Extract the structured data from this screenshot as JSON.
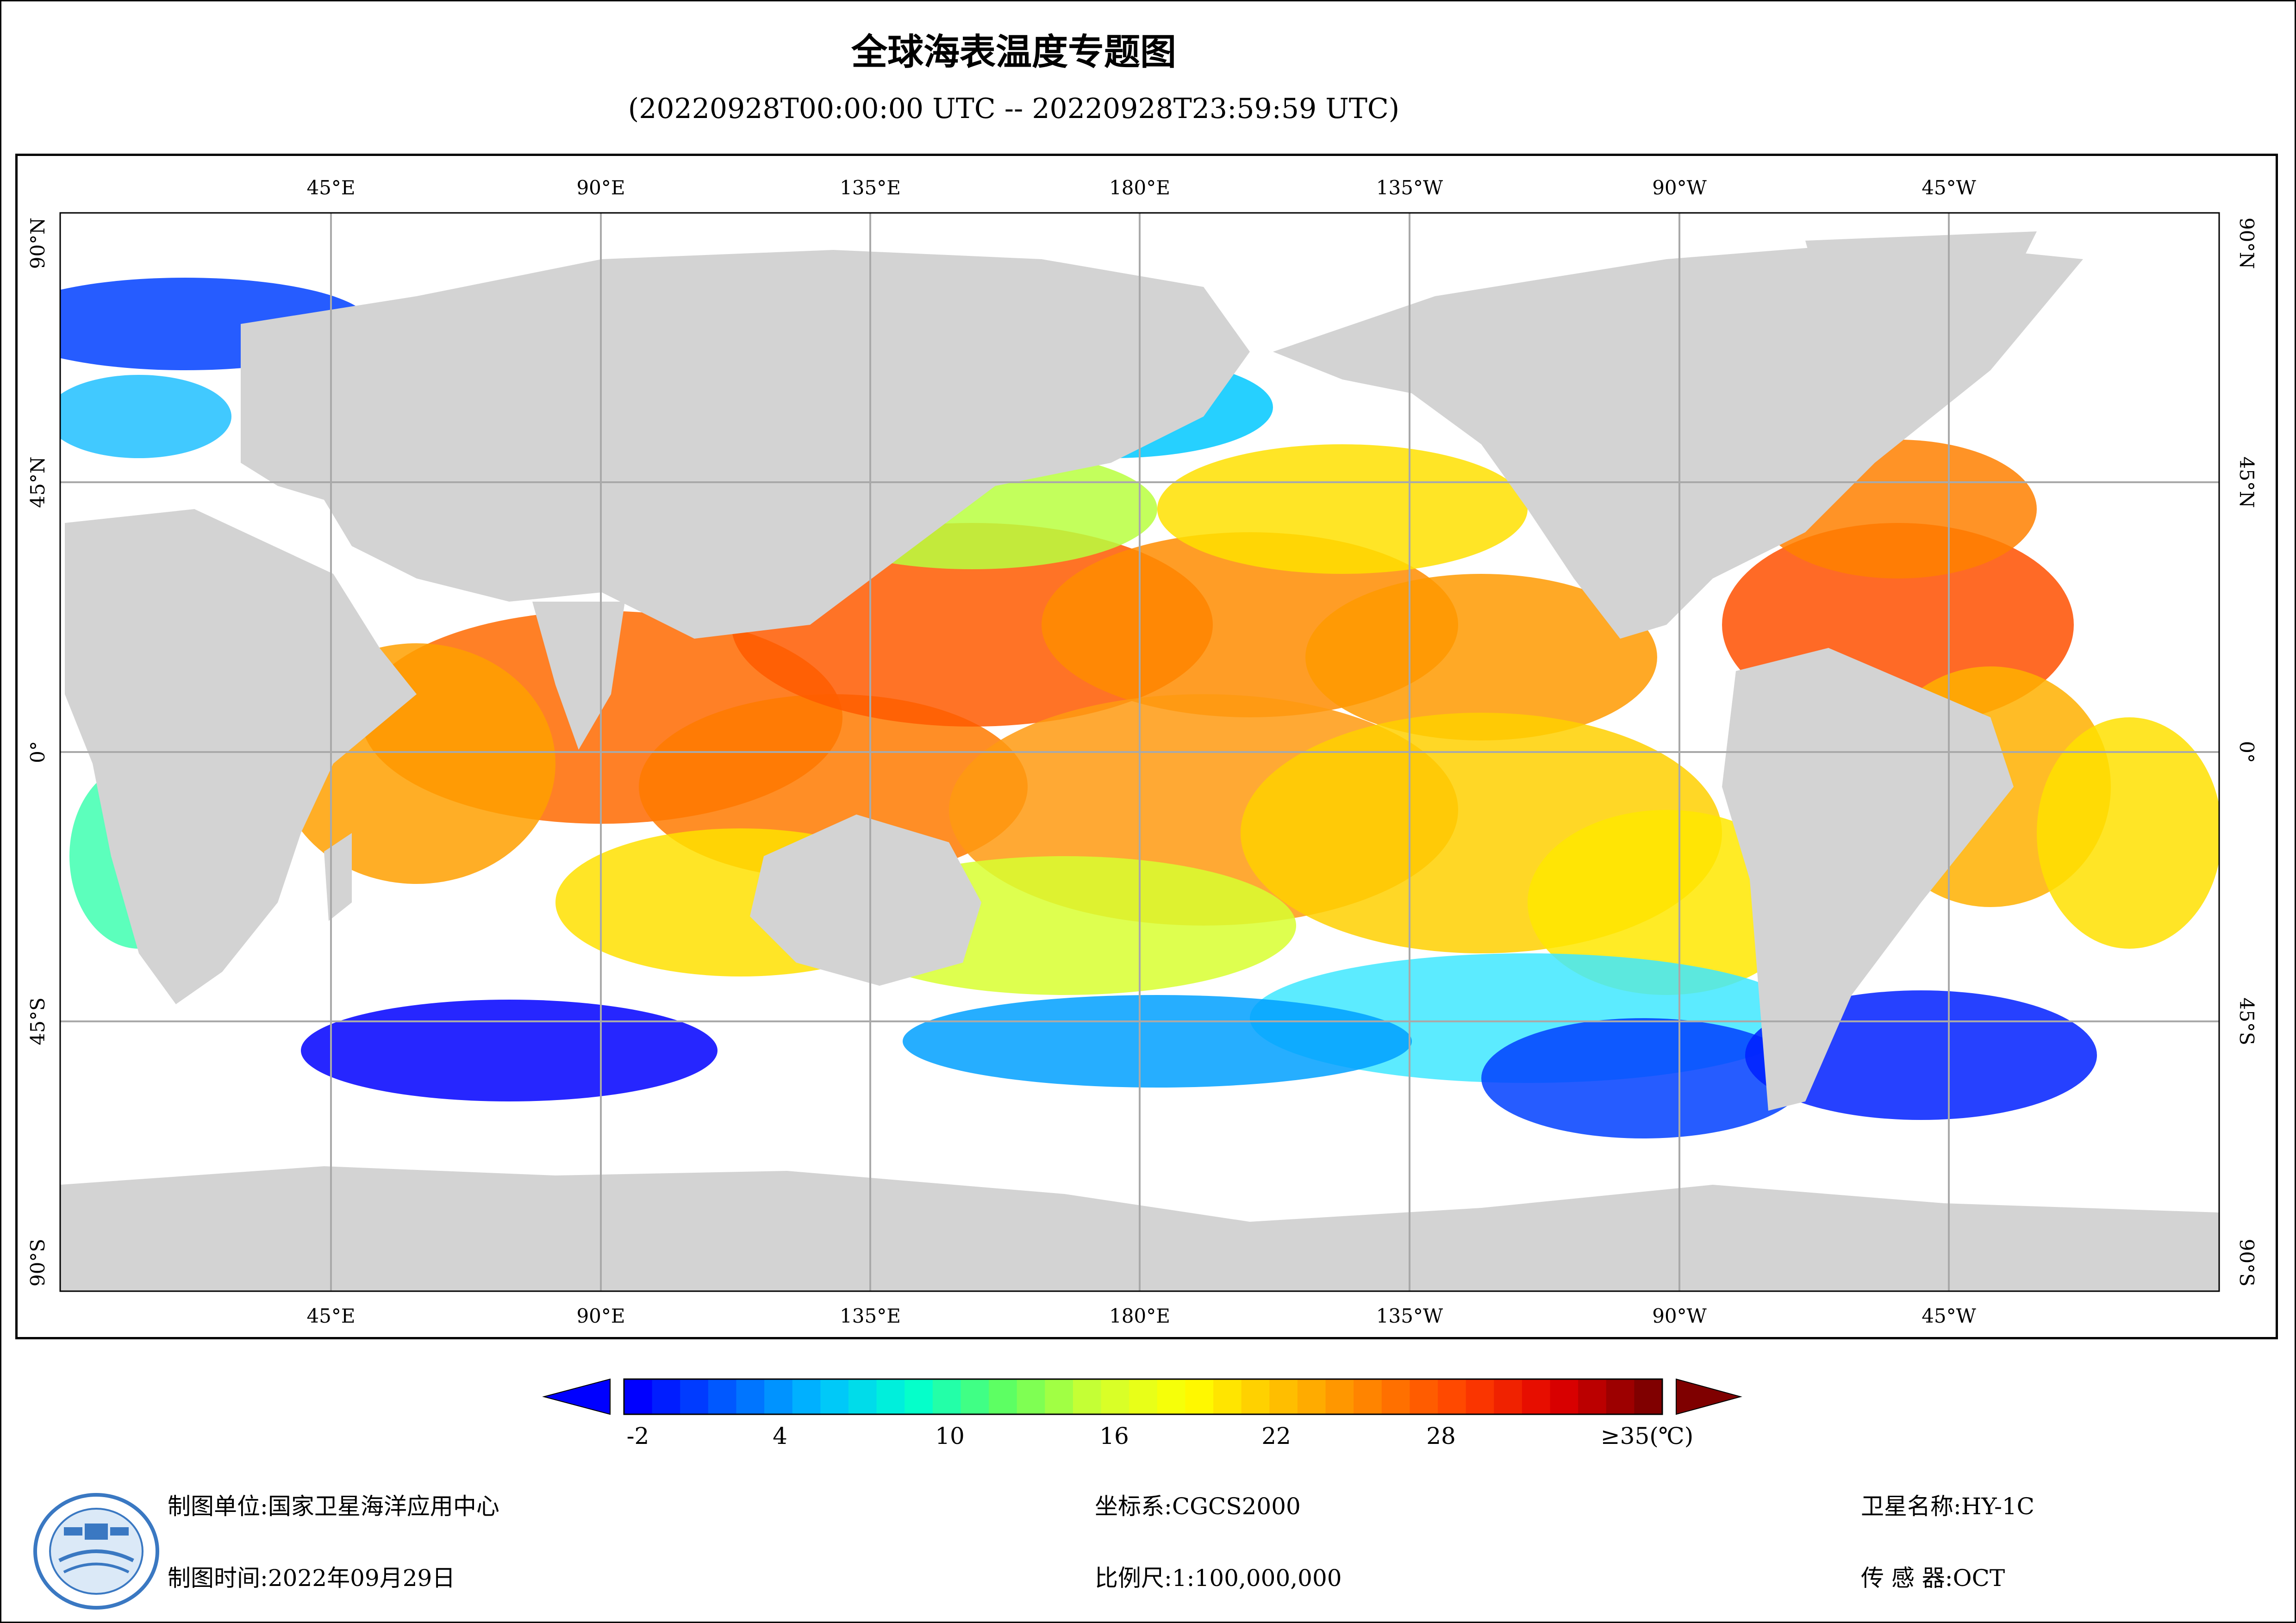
{
  "title": "全球海表温度专题图",
  "subtitle": "(20220928T00:00:00 UTC -- 20220928T23:59:59 UTC)",
  "map": {
    "top_lon_labels": [
      "45°E",
      "90°E",
      "135°E",
      "180°E",
      "135°W",
      "90°W",
      "45°W"
    ],
    "bottom_lon_labels": [
      "45°E",
      "90°E",
      "135°E",
      "180°E",
      "135°W",
      "90°W",
      "45°W"
    ],
    "left_lat_labels": [
      "90°N",
      "45°N",
      "0°",
      "45°S",
      "90°S"
    ],
    "right_lat_labels": [
      "90°N",
      "45°N",
      "0°",
      "45°S",
      "90°S"
    ],
    "colors": {
      "land": "#d3d3d3",
      "no_data": "#ffffff",
      "grid": "#a9a9a9"
    }
  },
  "legend": {
    "ticks": [
      "-2",
      "4",
      "10",
      "16",
      "22",
      "28",
      "≥35(℃)"
    ],
    "colors": [
      "#0000ff",
      "#0060ff",
      "#00c0ff",
      "#00ffd0",
      "#60ff60",
      "#d0ff30",
      "#ffff00",
      "#ffc000",
      "#ff8000",
      "#ff4000",
      "#e00000",
      "#800000"
    ],
    "under_color": "#0000ff",
    "over_color": "#7f0000"
  },
  "footer": {
    "org_label": "制图单位:",
    "org_value": "国家卫星海洋应用中心",
    "time_label": "制图时间:",
    "time_value": "2022年09月29日",
    "crs_label": "坐标系:",
    "crs_value": "CGCS2000",
    "scale_label": "比例尺:",
    "scale_value": "1:100,000,000",
    "satellite_label": "卫星名称:",
    "satellite_value": "HY-1C",
    "sensor_label": "传 感 器:",
    "sensor_value": "OCT"
  }
}
